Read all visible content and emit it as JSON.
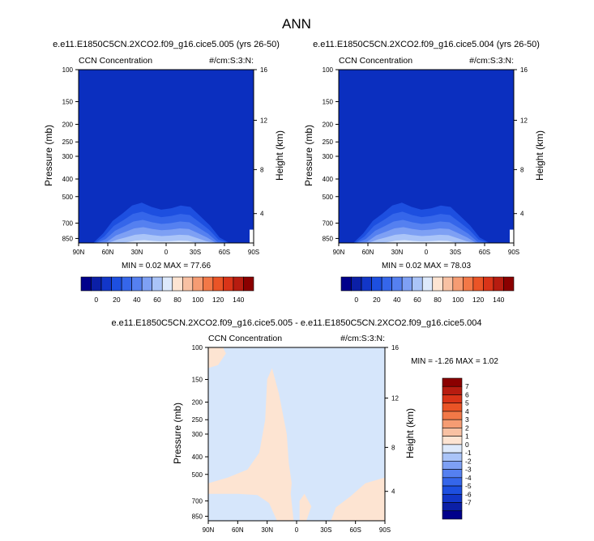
{
  "main_title": "ANN",
  "chart_data": [
    {
      "type": "heatmap",
      "title": "e.e11.E1850C5CN.2XCO2.f09_g16.cice5.005 (yrs 26-50)",
      "left_string": "CCN Concentration",
      "right_string": "#/cm:S:3:N:",
      "xlabel": "",
      "ylabel": "Pressure (mb)",
      "y2label": "Height (km)",
      "x_ticks": [
        "90N",
        "60N",
        "30N",
        "0",
        "30S",
        "60S",
        "90S"
      ],
      "y_ticks": [
        "100",
        "150",
        "200",
        "250",
        "300",
        "400",
        "500",
        "700",
        "850"
      ],
      "y2_ticks": [
        "16",
        "12",
        "8",
        "4"
      ],
      "min_max_text": "MIN =   0.02   MAX =  77.66",
      "min": 0.02,
      "max": 77.66,
      "colorbar_ticks": [
        "0",
        "20",
        "40",
        "60",
        "80",
        "100",
        "120",
        "140"
      ],
      "plume_top_profile": [
        {
          "lat": 90,
          "p": 1000
        },
        {
          "lat": 75,
          "p": 1000
        },
        {
          "lat": 65,
          "p": 800
        },
        {
          "lat": 55,
          "p": 680
        },
        {
          "lat": 45,
          "p": 620
        },
        {
          "lat": 35,
          "p": 560
        },
        {
          "lat": 25,
          "p": 540
        },
        {
          "lat": 15,
          "p": 570
        },
        {
          "lat": 5,
          "p": 590
        },
        {
          "lat": -5,
          "p": 580
        },
        {
          "lat": -15,
          "p": 560
        },
        {
          "lat": -25,
          "p": 570
        },
        {
          "lat": -35,
          "p": 640
        },
        {
          "lat": -45,
          "p": 720
        },
        {
          "lat": -55,
          "p": 840
        },
        {
          "lat": -65,
          "p": 1000
        },
        {
          "lat": -90,
          "p": 1000
        }
      ]
    },
    {
      "type": "heatmap",
      "title": "e.e11.E1850C5CN.2XCO2.f09_g16.cice5.004 (yrs 26-50)",
      "left_string": "CCN Concentration",
      "right_string": "#/cm:S:3:N:",
      "xlabel": "",
      "ylabel": "Pressure (mb)",
      "y2label": "Height (km)",
      "x_ticks": [
        "90N",
        "60N",
        "30N",
        "0",
        "30S",
        "60S",
        "90S"
      ],
      "y_ticks": [
        "100",
        "150",
        "200",
        "250",
        "300",
        "400",
        "500",
        "700",
        "850"
      ],
      "y2_ticks": [
        "16",
        "12",
        "8",
        "4"
      ],
      "min_max_text": "MIN =   0.02   MAX =  78.03",
      "min": 0.02,
      "max": 78.03,
      "colorbar_ticks": [
        "0",
        "20",
        "40",
        "60",
        "80",
        "100",
        "120",
        "140"
      ],
      "plume_top_profile": [
        {
          "lat": 90,
          "p": 1000
        },
        {
          "lat": 75,
          "p": 1000
        },
        {
          "lat": 65,
          "p": 800
        },
        {
          "lat": 55,
          "p": 680
        },
        {
          "lat": 45,
          "p": 620
        },
        {
          "lat": 35,
          "p": 560
        },
        {
          "lat": 25,
          "p": 540
        },
        {
          "lat": 15,
          "p": 570
        },
        {
          "lat": 5,
          "p": 590
        },
        {
          "lat": -5,
          "p": 580
        },
        {
          "lat": -15,
          "p": 560
        },
        {
          "lat": -25,
          "p": 570
        },
        {
          "lat": -35,
          "p": 640
        },
        {
          "lat": -45,
          "p": 720
        },
        {
          "lat": -55,
          "p": 840
        },
        {
          "lat": -65,
          "p": 1000
        },
        {
          "lat": -90,
          "p": 1000
        }
      ]
    },
    {
      "type": "heatmap",
      "title": "e.e11.E1850C5CN.2XCO2.f09_g16.cice5.005 - e.e11.E1850C5CN.2XCO2.f09_g16.cice5.004",
      "left_string": "CCN Concentration",
      "right_string": "#/cm:S:3:N:",
      "xlabel": "",
      "ylabel": "Pressure (mb)",
      "y2label": "Height (km)",
      "x_ticks": [
        "90N",
        "60N",
        "30N",
        "0",
        "30S",
        "60S",
        "90S"
      ],
      "y_ticks": [
        "100",
        "150",
        "200",
        "250",
        "300",
        "400",
        "500",
        "700",
        "850"
      ],
      "y2_ticks": [
        "16",
        "12",
        "8",
        "4"
      ],
      "min_max_text": "MIN =  -1.26   MAX =   1.02",
      "min": -1.26,
      "max": 1.02,
      "colorbar_ticks": [
        "7",
        "6",
        "5",
        "4",
        "3",
        "2",
        "1",
        "0",
        "-1",
        "-2",
        "-3",
        "-4",
        "-5",
        "-6",
        "-7"
      ]
    }
  ],
  "colors": {
    "seq_colormap": [
      "#00008b",
      "#0b1fa6",
      "#1236c8",
      "#1d4fe0",
      "#3566ea",
      "#5580f0",
      "#7ea0f4",
      "#aac4f8",
      "#dde9fb",
      "#fde4d2",
      "#f8c1a3",
      "#f59c73",
      "#f27847",
      "#ea5426",
      "#d93418",
      "#b71c10",
      "#8b0000"
    ],
    "diff_colormap": [
      "#00008b",
      "#0b1fa6",
      "#1236c8",
      "#1d4fe0",
      "#3566ea",
      "#5580f0",
      "#7ea0f4",
      "#aac4f8",
      "#dde9fb",
      "#fde4d2",
      "#f8c1a3",
      "#f59c73",
      "#f27847",
      "#ea5426",
      "#d93418",
      "#b71c10",
      "#8b0000"
    ],
    "panel_background": "#0b2fbf",
    "diff_background": "#d6e6fb",
    "diff_positive": "#fde4d2"
  }
}
